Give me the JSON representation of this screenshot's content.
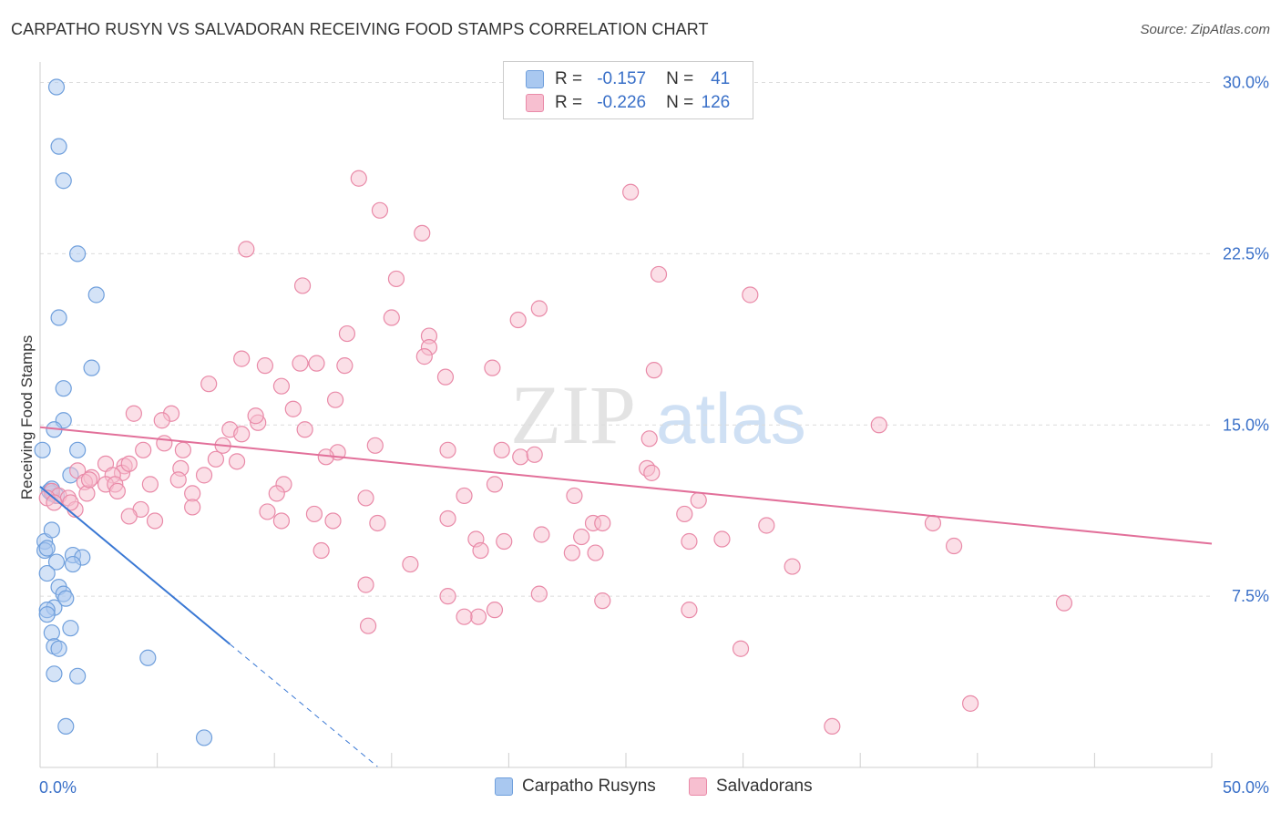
{
  "header": {
    "title": "CARPATHO RUSYN VS SALVADORAN RECEIVING FOOD STAMPS CORRELATION CHART",
    "source": "Source: ZipAtlas.com"
  },
  "watermark": {
    "part1": "ZIP",
    "part2": "atlas"
  },
  "legend": {
    "rows": [
      {
        "r_label": "R =",
        "r_value": "-0.157",
        "n_label": "N =",
        "n_value": "41",
        "color": "#a9c8f0",
        "border": "#6f9fdc"
      },
      {
        "r_label": "R =",
        "r_value": "-0.226",
        "n_label": "N =",
        "n_value": "126",
        "color": "#f7bfd0",
        "border": "#e98aa8"
      }
    ]
  },
  "bottom_legend": [
    {
      "label": "Carpatho Rusyns",
      "color": "#a9c8f0",
      "border": "#6f9fdc"
    },
    {
      "label": "Salvadorans",
      "color": "#f7bfd0",
      "border": "#e98aa8"
    }
  ],
  "chart_data": {
    "type": "scatter",
    "title": "CARPATHO RUSYN VS SALVADORAN RECEIVING FOOD STAMPS CORRELATION CHART",
    "xlabel": "",
    "ylabel": "Receiving Food Stamps",
    "xlim": [
      0,
      50
    ],
    "ylim": [
      0,
      30.5
    ],
    "x_tick_labels": [
      {
        "value": 0,
        "label": "0.0%"
      },
      {
        "value": 50,
        "label": "50.0%"
      }
    ],
    "y_tick_labels": [
      {
        "value": 7.5,
        "label": "7.5%"
      },
      {
        "value": 15,
        "label": "15.0%"
      },
      {
        "value": 22.5,
        "label": "22.5%"
      },
      {
        "value": 30,
        "label": "30.0%"
      }
    ],
    "grid": true,
    "legend_position": "top-center",
    "series": [
      {
        "name": "Carpatho Rusyns",
        "color": "#a9c8f0",
        "edge": "#6f9fdc",
        "points": [
          [
            0.7,
            29.8
          ],
          [
            0.8,
            27.2
          ],
          [
            1.0,
            25.7
          ],
          [
            1.6,
            22.5
          ],
          [
            2.4,
            20.7
          ],
          [
            0.8,
            19.7
          ],
          [
            2.2,
            17.5
          ],
          [
            1.0,
            16.6
          ],
          [
            1.0,
            15.2
          ],
          [
            0.6,
            14.8
          ],
          [
            0.1,
            13.9
          ],
          [
            1.6,
            13.9
          ],
          [
            1.3,
            12.8
          ],
          [
            0.5,
            12.0
          ],
          [
            0.7,
            11.9
          ],
          [
            0.4,
            12.1
          ],
          [
            0.2,
            9.9
          ],
          [
            0.5,
            10.4
          ],
          [
            0.2,
            9.5
          ],
          [
            1.4,
            9.3
          ],
          [
            1.8,
            9.2
          ],
          [
            0.7,
            9.0
          ],
          [
            1.4,
            8.9
          ],
          [
            0.3,
            8.5
          ],
          [
            0.8,
            7.9
          ],
          [
            1.0,
            7.6
          ],
          [
            1.1,
            7.4
          ],
          [
            0.6,
            7.0
          ],
          [
            0.3,
            6.9
          ],
          [
            0.3,
            6.7
          ],
          [
            1.3,
            6.1
          ],
          [
            0.5,
            5.9
          ],
          [
            0.6,
            5.3
          ],
          [
            0.8,
            5.2
          ],
          [
            4.6,
            4.8
          ],
          [
            0.6,
            4.1
          ],
          [
            1.6,
            4.0
          ],
          [
            1.1,
            1.8
          ],
          [
            7.0,
            1.3
          ],
          [
            0.3,
            9.6
          ],
          [
            0.5,
            12.2
          ]
        ]
      },
      {
        "name": "Salvadorans",
        "color": "#f7bfd0",
        "edge": "#e98aa8",
        "points": [
          [
            13.6,
            25.8
          ],
          [
            25.2,
            25.2
          ],
          [
            14.5,
            24.4
          ],
          [
            16.3,
            23.4
          ],
          [
            8.8,
            22.7
          ],
          [
            15.2,
            21.4
          ],
          [
            26.4,
            21.6
          ],
          [
            11.2,
            21.1
          ],
          [
            30.3,
            20.7
          ],
          [
            21.3,
            20.1
          ],
          [
            15.0,
            19.7
          ],
          [
            20.4,
            19.6
          ],
          [
            13.1,
            19.0
          ],
          [
            16.6,
            18.9
          ],
          [
            16.6,
            18.4
          ],
          [
            8.6,
            17.9
          ],
          [
            11.1,
            17.7
          ],
          [
            9.6,
            17.6
          ],
          [
            11.8,
            17.7
          ],
          [
            16.4,
            18.0
          ],
          [
            13.0,
            17.6
          ],
          [
            19.3,
            17.5
          ],
          [
            26.2,
            17.4
          ],
          [
            17.3,
            17.1
          ],
          [
            7.2,
            16.8
          ],
          [
            10.3,
            16.7
          ],
          [
            12.6,
            16.1
          ],
          [
            10.8,
            15.7
          ],
          [
            4.0,
            15.5
          ],
          [
            5.6,
            15.5
          ],
          [
            5.2,
            15.2
          ],
          [
            9.3,
            15.1
          ],
          [
            11.3,
            14.8
          ],
          [
            8.1,
            14.8
          ],
          [
            8.6,
            14.6
          ],
          [
            35.8,
            15.0
          ],
          [
            26.0,
            14.4
          ],
          [
            5.3,
            14.2
          ],
          [
            7.8,
            14.1
          ],
          [
            14.3,
            14.1
          ],
          [
            4.4,
            13.9
          ],
          [
            6.1,
            13.9
          ],
          [
            12.7,
            13.8
          ],
          [
            17.4,
            13.9
          ],
          [
            19.7,
            13.9
          ],
          [
            20.5,
            13.6
          ],
          [
            21.1,
            13.7
          ],
          [
            12.2,
            13.6
          ],
          [
            7.5,
            13.5
          ],
          [
            8.4,
            13.4
          ],
          [
            2.8,
            13.3
          ],
          [
            3.6,
            13.2
          ],
          [
            6.0,
            13.1
          ],
          [
            25.9,
            13.1
          ],
          [
            1.6,
            13.0
          ],
          [
            3.5,
            12.9
          ],
          [
            3.1,
            12.8
          ],
          [
            7.0,
            12.8
          ],
          [
            2.2,
            12.7
          ],
          [
            26.1,
            12.9
          ],
          [
            1.9,
            12.5
          ],
          [
            2.8,
            12.4
          ],
          [
            3.2,
            12.4
          ],
          [
            4.7,
            12.4
          ],
          [
            10.4,
            12.4
          ],
          [
            19.4,
            12.4
          ],
          [
            3.3,
            12.1
          ],
          [
            2.0,
            12.0
          ],
          [
            6.5,
            12.0
          ],
          [
            0.5,
            12.1
          ],
          [
            0.8,
            11.9
          ],
          [
            1.2,
            11.8
          ],
          [
            13.9,
            11.8
          ],
          [
            18.1,
            11.9
          ],
          [
            22.8,
            11.9
          ],
          [
            28.1,
            11.7
          ],
          [
            6.5,
            11.4
          ],
          [
            4.3,
            11.3
          ],
          [
            1.5,
            11.3
          ],
          [
            9.7,
            11.2
          ],
          [
            11.7,
            11.1
          ],
          [
            27.5,
            11.1
          ],
          [
            3.8,
            11.0
          ],
          [
            4.9,
            10.8
          ],
          [
            17.4,
            10.9
          ],
          [
            12.5,
            10.8
          ],
          [
            10.3,
            10.8
          ],
          [
            14.4,
            10.7
          ],
          [
            23.6,
            10.7
          ],
          [
            24.0,
            10.7
          ],
          [
            31.0,
            10.6
          ],
          [
            38.1,
            10.7
          ],
          [
            21.4,
            10.2
          ],
          [
            23.1,
            10.1
          ],
          [
            29.1,
            10.0
          ],
          [
            27.7,
            9.9
          ],
          [
            18.6,
            10.0
          ],
          [
            19.8,
            9.9
          ],
          [
            39.0,
            9.7
          ],
          [
            18.8,
            9.5
          ],
          [
            12.0,
            9.5
          ],
          [
            22.7,
            9.4
          ],
          [
            23.7,
            9.4
          ],
          [
            15.8,
            8.9
          ],
          [
            32.1,
            8.8
          ],
          [
            13.9,
            8.0
          ],
          [
            21.3,
            7.6
          ],
          [
            17.4,
            7.5
          ],
          [
            24.0,
            7.3
          ],
          [
            43.7,
            7.2
          ],
          [
            27.7,
            6.9
          ],
          [
            19.4,
            6.9
          ],
          [
            18.7,
            6.6
          ],
          [
            18.1,
            6.6
          ],
          [
            14.0,
            6.2
          ],
          [
            29.9,
            5.2
          ],
          [
            39.7,
            2.8
          ],
          [
            33.8,
            1.8
          ],
          [
            2.1,
            12.6
          ],
          [
            10.1,
            12.0
          ],
          [
            3.8,
            13.3
          ],
          [
            1.3,
            11.6
          ],
          [
            0.3,
            11.8
          ],
          [
            0.6,
            11.6
          ],
          [
            5.9,
            12.6
          ],
          [
            9.2,
            15.4
          ]
        ]
      }
    ],
    "trend_lines": [
      {
        "series": "Carpatho Rusyns",
        "x": [
          0,
          8.1
        ],
        "y": [
          12.3,
          5.4
        ],
        "dashed_extension": [
          8.1,
          14.4
        ],
        "color": "#3a78d4"
      },
      {
        "series": "Salvadorans",
        "x": [
          0,
          50
        ],
        "y": [
          14.9,
          9.8
        ],
        "color": "#e2709a"
      }
    ]
  }
}
